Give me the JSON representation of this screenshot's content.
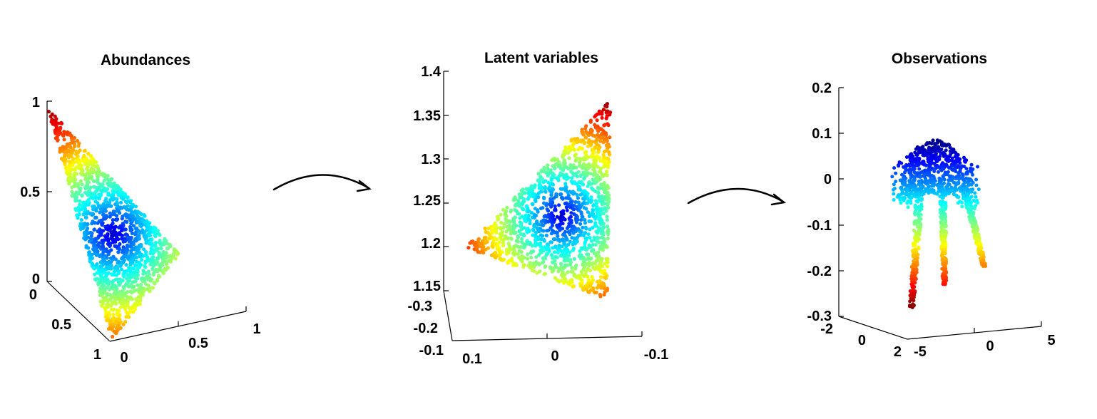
{
  "chart_data": [
    {
      "type": "scatter",
      "title": "Abundances",
      "projection": "3d",
      "colormap": "jet",
      "color_by": "distance from centroid",
      "x_ticks": [
        "0",
        "0.5",
        "1"
      ],
      "y_ticks": [
        "0",
        "0.5",
        "1"
      ],
      "z_ticks": [
        "0",
        "0.5",
        "1"
      ],
      "xlim": [
        0,
        1
      ],
      "ylim": [
        0,
        1
      ],
      "zlim": [
        0,
        1
      ],
      "shape": "triangular simplex"
    },
    {
      "type": "scatter",
      "title": "Latent variables",
      "projection": "3d",
      "colormap": "jet",
      "color_by": "distance from centroid",
      "x_ticks": [
        "0.1",
        "0",
        "-0.1"
      ],
      "y_ticks": [
        "-0.3",
        "-0.2",
        "-0.1"
      ],
      "z_ticks": [
        "1.15",
        "1.2",
        "1.25",
        "1.3",
        "1.35",
        "1.4"
      ],
      "zlim": [
        1.15,
        1.4
      ],
      "shape": "triangle"
    },
    {
      "type": "scatter",
      "title": "Observations",
      "projection": "3d",
      "colormap": "jet",
      "color_by": "height (z)",
      "x_ticks": [
        "-5",
        "0",
        "5"
      ],
      "y_ticks": [
        "-2",
        "0",
        "2"
      ],
      "z_ticks": [
        "-0.3",
        "-0.2",
        "-0.1",
        "0",
        "0.1",
        "0.2"
      ],
      "zlim": [
        -0.3,
        0.2
      ],
      "shape": "curved manifold"
    }
  ]
}
